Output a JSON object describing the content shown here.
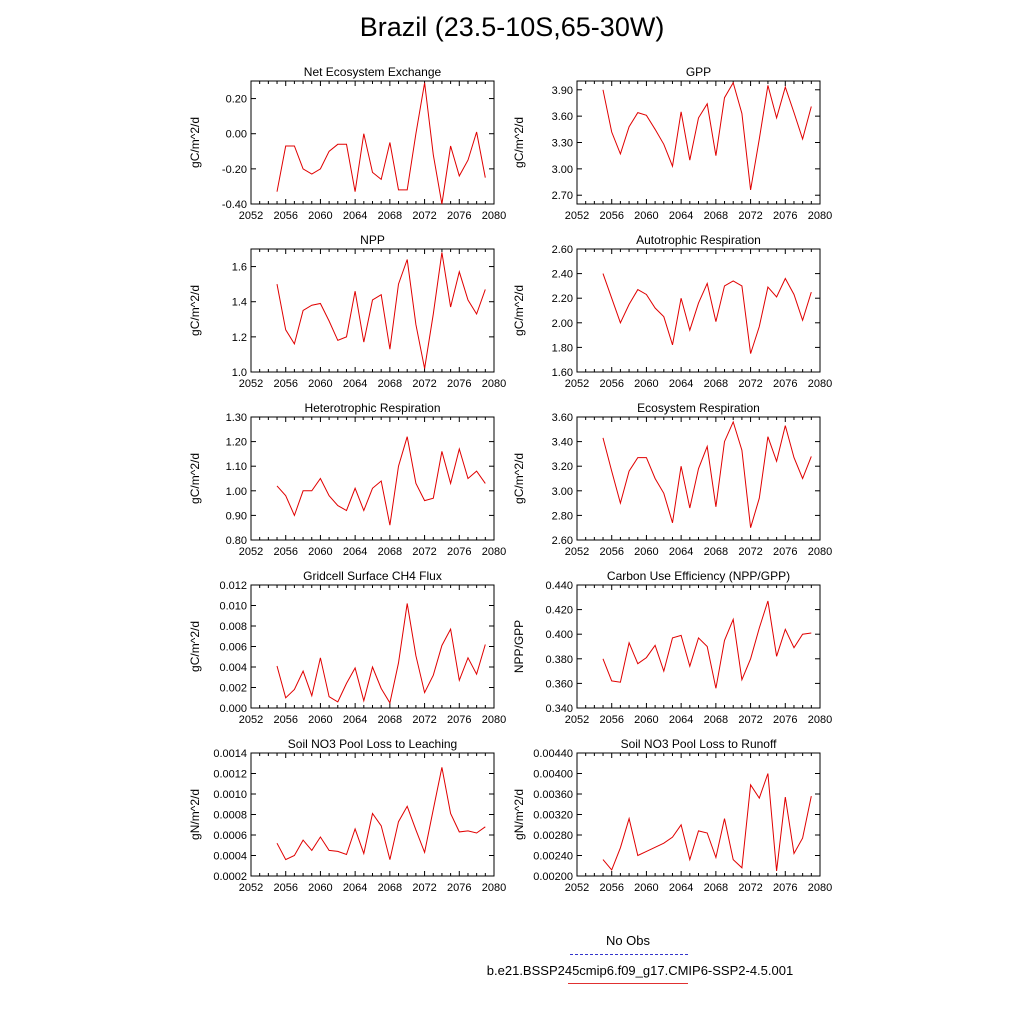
{
  "figure": {
    "title": "Brazil (23.5-10S,65-30W)",
    "x_tick_labels": [
      "2052",
      "2056",
      "2060",
      "2064",
      "2068",
      "2072",
      "2076",
      "2080"
    ],
    "line_color": "#e00000",
    "legend": {
      "obs_label": "No Obs",
      "obs_color": "#3333cc",
      "model_label": "b.e21.BSSP245cmip6.f09_g17.CMIP6-SSP2-4.5.001",
      "model_color": "#e03030"
    }
  },
  "chart_data": [
    {
      "type": "line",
      "title": "Net Ecosystem Exchange",
      "ylabel": "gC/m^2/d",
      "xlim": [
        2052,
        2080
      ],
      "ylim": [
        -0.4,
        0.3
      ],
      "yticks": [
        -0.4,
        -0.2,
        0.0,
        0.2
      ],
      "ytick_labels": [
        "-0.40",
        "-0.20",
        "0.00",
        "0.20"
      ],
      "x": [
        2055,
        2056,
        2057,
        2058,
        2059,
        2060,
        2061,
        2062,
        2063,
        2064,
        2065,
        2066,
        2067,
        2068,
        2069,
        2070,
        2071,
        2072,
        2073,
        2074,
        2075,
        2076,
        2077,
        2078,
        2079
      ],
      "values": [
        -0.33,
        -0.07,
        -0.07,
        -0.2,
        -0.23,
        -0.2,
        -0.1,
        -0.06,
        -0.06,
        -0.33,
        0.0,
        -0.22,
        -0.26,
        -0.05,
        -0.32,
        -0.32,
        0.0,
        0.29,
        -0.12,
        -0.4,
        -0.07,
        -0.24,
        -0.15,
        0.01,
        -0.25
      ],
      "name": "Net Ecosystem Exchange"
    },
    {
      "type": "line",
      "title": "GPP",
      "ylabel": "gC/m^2/d",
      "xlim": [
        2052,
        2080
      ],
      "ylim": [
        2.6,
        4.0
      ],
      "yticks": [
        2.7,
        3.0,
        3.3,
        3.6,
        3.9
      ],
      "ytick_labels": [
        "2.70",
        "3.00",
        "3.30",
        "3.60",
        "3.90"
      ],
      "x": [
        2055,
        2056,
        2057,
        2058,
        2059,
        2060,
        2061,
        2062,
        2063,
        2064,
        2065,
        2066,
        2067,
        2068,
        2069,
        2070,
        2071,
        2072,
        2073,
        2074,
        2075,
        2076,
        2077,
        2078,
        2079
      ],
      "values": [
        3.9,
        3.42,
        3.17,
        3.48,
        3.64,
        3.61,
        3.45,
        3.28,
        3.03,
        3.65,
        3.1,
        3.58,
        3.74,
        3.15,
        3.81,
        3.98,
        3.63,
        2.76,
        3.34,
        3.95,
        3.58,
        3.93,
        3.64,
        3.34,
        3.71
      ],
      "name": "GPP"
    },
    {
      "type": "line",
      "title": "NPP",
      "ylabel": "gC/m^2/d",
      "xlim": [
        2052,
        2080
      ],
      "ylim": [
        1.0,
        1.7
      ],
      "yticks": [
        1.0,
        1.2,
        1.4,
        1.6
      ],
      "ytick_labels": [
        "1.0",
        "1.2",
        "1.4",
        "1.6"
      ],
      "x": [
        2055,
        2056,
        2057,
        2058,
        2059,
        2060,
        2061,
        2062,
        2063,
        2064,
        2065,
        2066,
        2067,
        2068,
        2069,
        2070,
        2071,
        2072,
        2073,
        2074,
        2075,
        2076,
        2077,
        2078,
        2079
      ],
      "values": [
        1.5,
        1.24,
        1.16,
        1.35,
        1.38,
        1.39,
        1.29,
        1.18,
        1.2,
        1.46,
        1.17,
        1.41,
        1.44,
        1.13,
        1.5,
        1.64,
        1.27,
        1.02,
        1.33,
        1.68,
        1.37,
        1.57,
        1.41,
        1.33,
        1.47
      ],
      "name": "NPP"
    },
    {
      "type": "line",
      "title": "Autotrophic Respiration",
      "ylabel": "gC/m^2/d",
      "xlim": [
        2052,
        2080
      ],
      "ylim": [
        1.6,
        2.6
      ],
      "yticks": [
        1.6,
        1.8,
        2.0,
        2.2,
        2.4,
        2.6
      ],
      "ytick_labels": [
        "1.60",
        "1.80",
        "2.00",
        "2.20",
        "2.40",
        "2.60"
      ],
      "x": [
        2055,
        2056,
        2057,
        2058,
        2059,
        2060,
        2061,
        2062,
        2063,
        2064,
        2065,
        2066,
        2067,
        2068,
        2069,
        2070,
        2071,
        2072,
        2073,
        2074,
        2075,
        2076,
        2077,
        2078,
        2079
      ],
      "values": [
        2.4,
        2.2,
        2.0,
        2.15,
        2.27,
        2.23,
        2.12,
        2.05,
        1.82,
        2.2,
        1.94,
        2.16,
        2.32,
        2.01,
        2.3,
        2.34,
        2.3,
        1.75,
        1.97,
        2.29,
        2.21,
        2.36,
        2.23,
        2.02,
        2.25
      ],
      "name": "Autotrophic Respiration"
    },
    {
      "type": "line",
      "title": "Heterotrophic Respiration",
      "ylabel": "gC/m^2/d",
      "xlim": [
        2052,
        2080
      ],
      "ylim": [
        0.8,
        1.3
      ],
      "yticks": [
        0.8,
        0.9,
        1.0,
        1.1,
        1.2,
        1.3
      ],
      "ytick_labels": [
        "0.80",
        "0.90",
        "1.00",
        "1.10",
        "1.20",
        "1.30"
      ],
      "x": [
        2055,
        2056,
        2057,
        2058,
        2059,
        2060,
        2061,
        2062,
        2063,
        2064,
        2065,
        2066,
        2067,
        2068,
        2069,
        2070,
        2071,
        2072,
        2073,
        2074,
        2075,
        2076,
        2077,
        2078,
        2079
      ],
      "values": [
        1.02,
        0.98,
        0.9,
        1.0,
        1.0,
        1.05,
        0.98,
        0.94,
        0.92,
        1.01,
        0.92,
        1.01,
        1.04,
        0.86,
        1.1,
        1.22,
        1.03,
        0.96,
        0.97,
        1.16,
        1.03,
        1.17,
        1.05,
        1.08,
        1.03
      ],
      "name": "Heterotrophic Respiration"
    },
    {
      "type": "line",
      "title": "Ecosystem Respiration",
      "ylabel": "gC/m^2/d",
      "xlim": [
        2052,
        2080
      ],
      "ylim": [
        2.6,
        3.6
      ],
      "yticks": [
        2.6,
        2.8,
        3.0,
        3.2,
        3.4,
        3.6
      ],
      "ytick_labels": [
        "2.60",
        "2.80",
        "3.00",
        "3.20",
        "3.40",
        "3.60"
      ],
      "x": [
        2055,
        2056,
        2057,
        2058,
        2059,
        2060,
        2061,
        2062,
        2063,
        2064,
        2065,
        2066,
        2067,
        2068,
        2069,
        2070,
        2071,
        2072,
        2073,
        2074,
        2075,
        2076,
        2077,
        2078,
        2079
      ],
      "values": [
        3.43,
        3.16,
        2.9,
        3.16,
        3.27,
        3.27,
        3.1,
        2.98,
        2.74,
        3.2,
        2.86,
        3.18,
        3.36,
        2.87,
        3.4,
        3.56,
        3.33,
        2.7,
        2.94,
        3.44,
        3.24,
        3.53,
        3.27,
        3.1,
        3.28
      ],
      "name": "Ecosystem Respiration"
    },
    {
      "type": "line",
      "title": "Gridcell Surface CH4 Flux",
      "ylabel": "gC/m^2/d",
      "xlim": [
        2052,
        2080
      ],
      "ylim": [
        0.0,
        0.012
      ],
      "yticks": [
        0.0,
        0.002,
        0.004,
        0.006,
        0.008,
        0.01,
        0.012
      ],
      "ytick_labels": [
        "0.000",
        "0.002",
        "0.004",
        "0.006",
        "0.008",
        "0.010",
        "0.012"
      ],
      "x": [
        2055,
        2056,
        2057,
        2058,
        2059,
        2060,
        2061,
        2062,
        2063,
        2064,
        2065,
        2066,
        2067,
        2068,
        2069,
        2070,
        2071,
        2072,
        2073,
        2074,
        2075,
        2076,
        2077,
        2078,
        2079
      ],
      "values": [
        0.0041,
        0.001,
        0.0018,
        0.0036,
        0.0012,
        0.0049,
        0.0011,
        0.0006,
        0.0024,
        0.0039,
        0.0007,
        0.004,
        0.0019,
        0.0005,
        0.0044,
        0.0102,
        0.0051,
        0.0015,
        0.0032,
        0.0061,
        0.0077,
        0.0027,
        0.0049,
        0.0033,
        0.0062
      ],
      "name": "Gridcell Surface CH4 Flux"
    },
    {
      "type": "line",
      "title": "Carbon Use Efficiency (NPP/GPP)",
      "ylabel": "NPP/GPP",
      "xlim": [
        2052,
        2080
      ],
      "ylim": [
        0.34,
        0.44
      ],
      "yticks": [
        0.34,
        0.36,
        0.38,
        0.4,
        0.42,
        0.44
      ],
      "ytick_labels": [
        "0.340",
        "0.360",
        "0.380",
        "0.400",
        "0.420",
        "0.440"
      ],
      "x": [
        2055,
        2056,
        2057,
        2058,
        2059,
        2060,
        2061,
        2062,
        2063,
        2064,
        2065,
        2066,
        2067,
        2068,
        2069,
        2070,
        2071,
        2072,
        2073,
        2074,
        2075,
        2076,
        2077,
        2078,
        2079
      ],
      "values": [
        0.38,
        0.362,
        0.361,
        0.393,
        0.376,
        0.381,
        0.391,
        0.37,
        0.397,
        0.399,
        0.374,
        0.397,
        0.39,
        0.356,
        0.395,
        0.412,
        0.363,
        0.38,
        0.405,
        0.427,
        0.382,
        0.404,
        0.389,
        0.4,
        0.401
      ],
      "name": "Carbon Use Efficiency (NPP/GPP)"
    },
    {
      "type": "line",
      "title": "Soil NO3 Pool Loss to Leaching",
      "ylabel": "gN/m^2/d",
      "xlim": [
        2052,
        2080
      ],
      "ylim": [
        0.0002,
        0.0014
      ],
      "yticks": [
        0.0002,
        0.0004,
        0.0006,
        0.0008,
        0.001,
        0.0012,
        0.0014
      ],
      "ytick_labels": [
        "0.0002",
        "0.0004",
        "0.0006",
        "0.0008",
        "0.0010",
        "0.0012",
        "0.0014"
      ],
      "x": [
        2055,
        2056,
        2057,
        2058,
        2059,
        2060,
        2061,
        2062,
        2063,
        2064,
        2065,
        2066,
        2067,
        2068,
        2069,
        2070,
        2071,
        2072,
        2073,
        2074,
        2075,
        2076,
        2077,
        2078,
        2079
      ],
      "values": [
        0.00052,
        0.00036,
        0.0004,
        0.00055,
        0.00045,
        0.00058,
        0.00045,
        0.00044,
        0.00041,
        0.00066,
        0.00042,
        0.00081,
        0.00069,
        0.00036,
        0.00073,
        0.00088,
        0.00065,
        0.00043,
        0.00085,
        0.00126,
        0.00081,
        0.00063,
        0.00064,
        0.00062,
        0.00068
      ],
      "name": "Soil NO3 Pool Loss to Leaching"
    },
    {
      "type": "line",
      "title": "Soil NO3 Pool Loss to Runoff",
      "ylabel": "gN/m^2/d",
      "xlim": [
        2052,
        2080
      ],
      "ylim": [
        0.002,
        0.0044
      ],
      "yticks": [
        0.002,
        0.0024,
        0.0028,
        0.0032,
        0.0036,
        0.004,
        0.0044
      ],
      "ytick_labels": [
        "0.00200",
        "0.00240",
        "0.00280",
        "0.00320",
        "0.00360",
        "0.00400",
        "0.00440"
      ],
      "x": [
        2055,
        2056,
        2057,
        2058,
        2059,
        2060,
        2061,
        2062,
        2063,
        2064,
        2065,
        2066,
        2067,
        2068,
        2069,
        2070,
        2071,
        2072,
        2073,
        2074,
        2075,
        2076,
        2077,
        2078,
        2079
      ],
      "values": [
        0.00232,
        0.00212,
        0.00255,
        0.00312,
        0.0024,
        0.00248,
        0.00256,
        0.00264,
        0.00276,
        0.003,
        0.00232,
        0.00288,
        0.00284,
        0.00236,
        0.00312,
        0.00232,
        0.00216,
        0.00378,
        0.00352,
        0.004,
        0.0021,
        0.00354,
        0.00244,
        0.00274,
        0.00356
      ],
      "name": "Soil NO3 Pool Loss to Runoff"
    }
  ]
}
